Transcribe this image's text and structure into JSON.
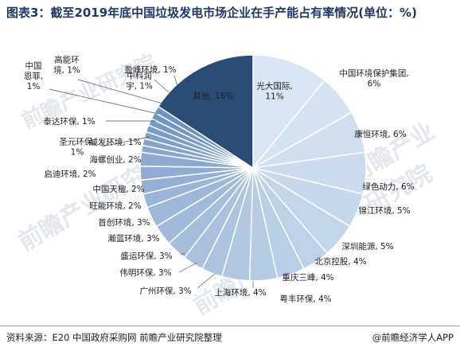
{
  "title": "图表3：截至2019年底中国垃圾发电市场企业在手产能占有率情况(单位：%)",
  "footer": {
    "source": "资料来源：E20 中国政府采购网 前瞻产业研究院整理",
    "brand": "@前瞻经济学人APP"
  },
  "watermark_text": "前瞻产业研究院",
  "colors": {
    "title": "#1f3864",
    "other_slice": "#2a4d75",
    "palette_light": "#d9e5f2",
    "palette_dark": "#6c93c6"
  },
  "chart_data": {
    "type": "pie",
    "title": "图表3：截至2019年底中国垃圾发电市场企业在手产能占有率情况(单位：%)",
    "unit": "%",
    "slices": [
      {
        "name": "光大国际",
        "value": 11,
        "label": "光大国际,\n11%"
      },
      {
        "name": "中国环境保护集团",
        "value": 6,
        "label": "中国环境保护集团,\n6%"
      },
      {
        "name": "康恒环境",
        "value": 6,
        "label": "康恒环境, 6%"
      },
      {
        "name": "绿色动力",
        "value": 6,
        "label": "绿色动力, 6%"
      },
      {
        "name": "锦江环境",
        "value": 5,
        "label": "锦江环境, 5%"
      },
      {
        "name": "深圳能源",
        "value": 5,
        "label": "深圳能源, 5%"
      },
      {
        "name": "北京控股",
        "value": 4,
        "label": "北京控股, 4%"
      },
      {
        "name": "重庆三峰",
        "value": 4,
        "label": "重庆三峰, 4%"
      },
      {
        "name": "粤丰环保",
        "value": 4,
        "label": "粤丰环保, 4%"
      },
      {
        "name": "上海环境",
        "value": 4,
        "label": "上海环境, 4%"
      },
      {
        "name": "广州环保",
        "value": 3,
        "label": "广州环保, 3%"
      },
      {
        "name": "伟明环保",
        "value": 3,
        "label": "伟明环保, 3%"
      },
      {
        "name": "盛运环保",
        "value": 3,
        "label": "盛运环保, 3%"
      },
      {
        "name": "瀚蓝环境",
        "value": 3,
        "label": "瀚蓝环境, 3%"
      },
      {
        "name": "首创环境",
        "value": 3,
        "label": "首创环境, 3%"
      },
      {
        "name": "旺能环境",
        "value": 2,
        "label": "旺能环境, 2%"
      },
      {
        "name": "中国天楹",
        "value": 2,
        "label": "中国天楹, 2%"
      },
      {
        "name": "启迪环境",
        "value": 2,
        "label": "启迪环境, 2%"
      },
      {
        "name": "海螺创业",
        "value": 2,
        "label": "海螺创业, 2%"
      },
      {
        "name": "圣元环保",
        "value": 1,
        "label": "圣元环保,\n1%"
      },
      {
        "name": "城发环境",
        "value": 1,
        "label": "城发环境, 1%"
      },
      {
        "name": "泰达环保",
        "value": 1,
        "label": "泰达环保, 1%"
      },
      {
        "name": "中国恩菲",
        "value": 1,
        "label": "中国\n恩菲,\n1%"
      },
      {
        "name": "高能环境",
        "value": 1,
        "label": "高能环\n境, 1%"
      },
      {
        "name": "中科润宇",
        "value": 1,
        "label": "中科润\n宇, 1%"
      },
      {
        "name": "盈峰环境",
        "value": 1,
        "label": "盈峰环境, 1%"
      },
      {
        "name": "其他",
        "value": 16,
        "label": "其他, 16%"
      }
    ]
  }
}
